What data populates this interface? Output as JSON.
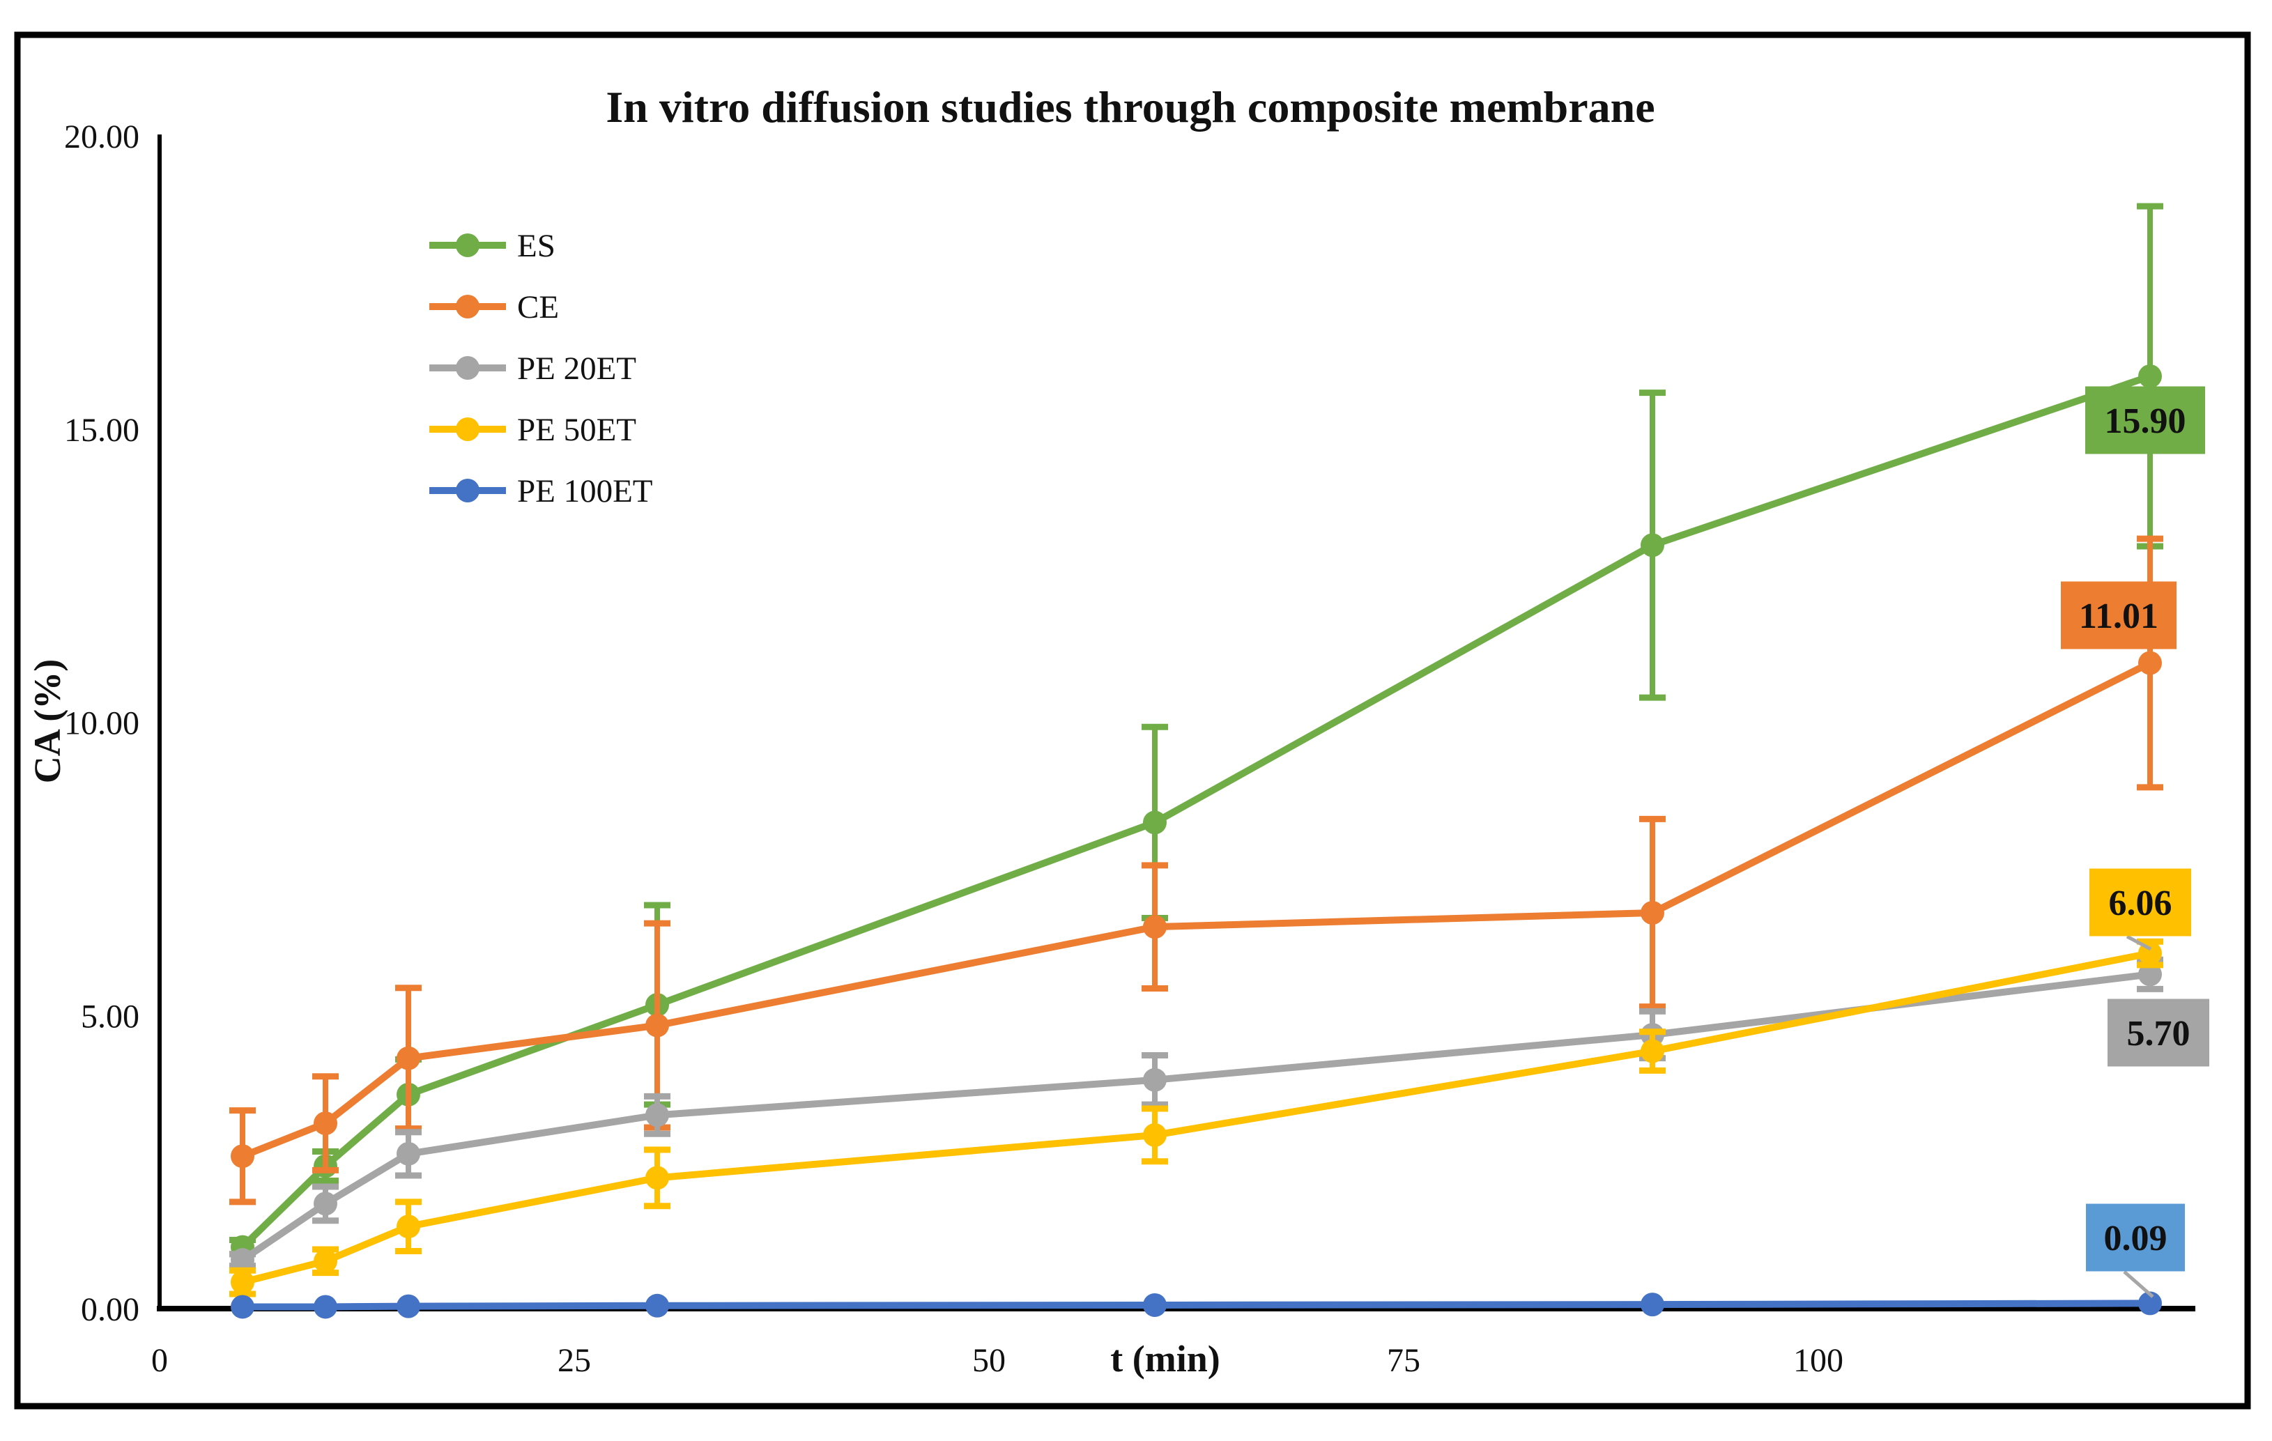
{
  "chart_data": {
    "type": "line",
    "title": "In vitro diffusion studies through composite membrane",
    "xlabel": "t (min)",
    "ylabel": "CA (%)",
    "x": [
      5,
      10,
      15,
      30,
      60,
      90,
      120
    ],
    "xlim": [
      0,
      123
    ],
    "ylim": [
      0,
      20
    ],
    "x_ticks": [
      0,
      25,
      50,
      75,
      100
    ],
    "y_ticks": [
      0,
      5,
      10,
      15,
      20
    ],
    "y_tick_labels": [
      "0.00",
      "5.00",
      "10.00",
      "15.00",
      "20.00"
    ],
    "grid": false,
    "legend_position": "top-left-inside",
    "error_bars": true,
    "series": [
      {
        "name": "ES",
        "color": "#70AD47",
        "values": [
          1.05,
          2.43,
          3.65,
          5.18,
          8.29,
          13.02,
          15.9
        ],
        "errors": [
          0.12,
          0.25,
          0.6,
          1.7,
          1.63,
          2.6,
          2.9
        ],
        "end_label": "15.90",
        "end_label_bg": "#70AD47",
        "end_label_color": "#000000"
      },
      {
        "name": "CE",
        "color": "#ED7D31",
        "values": [
          2.6,
          3.16,
          4.27,
          4.83,
          6.51,
          6.75,
          11.01
        ],
        "errors": [
          0.78,
          0.8,
          1.2,
          1.74,
          1.05,
          1.6,
          2.12
        ],
        "end_label": "11.01",
        "end_label_bg": "#ED7D31",
        "end_label_color": "#000000"
      },
      {
        "name": "PE 20ET",
        "color": "#A5A5A5",
        "values": [
          0.83,
          1.79,
          2.64,
          3.3,
          3.9,
          4.67,
          5.7
        ],
        "errors": [
          0.1,
          0.29,
          0.37,
          0.32,
          0.42,
          0.4,
          0.25
        ],
        "end_label": "5.70",
        "end_label_bg": "#A5A5A5",
        "end_label_color": "#000000"
      },
      {
        "name": "PE 50ET",
        "color": "#FFC000",
        "values": [
          0.45,
          0.81,
          1.4,
          2.23,
          2.96,
          4.39,
          6.06
        ],
        "errors": [
          0.2,
          0.2,
          0.42,
          0.48,
          0.45,
          0.33,
          0.2
        ],
        "end_label": "6.06",
        "end_label_bg": "#FFC000",
        "end_label_color": "#000000"
      },
      {
        "name": "PE 100ET",
        "color": "#4472C4",
        "values": [
          0.03,
          0.03,
          0.04,
          0.05,
          0.06,
          0.07,
          0.09
        ],
        "errors": [
          0,
          0,
          0,
          0,
          0,
          0,
          0
        ],
        "end_label": "0.09",
        "end_label_bg": "#5B9BD5",
        "end_label_color": "#3B3B3B"
      }
    ]
  }
}
